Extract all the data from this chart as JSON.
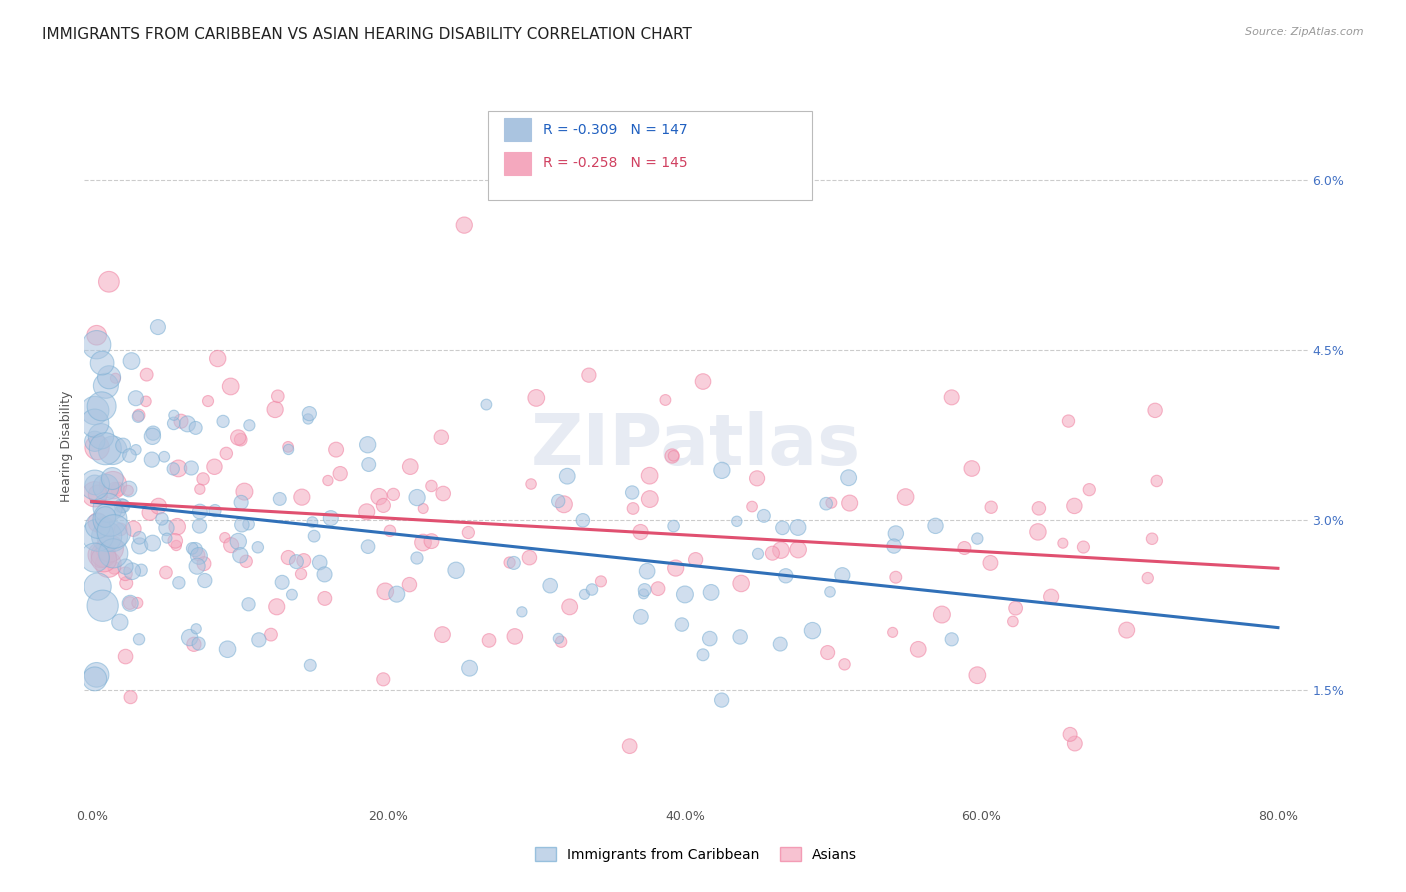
{
  "title": "IMMIGRANTS FROM CARIBBEAN VS ASIAN HEARING DISABILITY CORRELATION CHART",
  "source": "Source: ZipAtlas.com",
  "ylabel": "Hearing Disability",
  "xlim": [
    0.0,
    0.8
  ],
  "ylim": [
    0.005,
    0.068
  ],
  "xtick_vals": [
    0.0,
    0.2,
    0.4,
    0.6,
    0.8
  ],
  "xtick_labels": [
    "0.0%",
    "20.0%",
    "40.0%",
    "60.0%",
    "80.0%"
  ],
  "ytick_vals": [
    0.015,
    0.03,
    0.045,
    0.06
  ],
  "ytick_labels": [
    "1.5%",
    "3.0%",
    "4.5%",
    "6.0%"
  ],
  "caribbean_color": "#aac4e0",
  "asian_color": "#f4a8be",
  "caribbean_edge": "#7aafd4",
  "asian_edge": "#f080a0",
  "trend_caribbean_color": "#3070b8",
  "trend_asian_color": "#e05070",
  "legend_line1": "R = -0.309   N = 147",
  "legend_line2": "R = -0.258   N = 145",
  "legend_color1": "#2060c0",
  "legend_color2": "#d04060",
  "legend_label_caribbean": "Immigrants from Caribbean",
  "legend_label_asian": "Asians",
  "watermark": "ZIPatlas",
  "background_color": "#ffffff",
  "grid_color": "#cccccc",
  "title_fontsize": 11,
  "axis_label_fontsize": 9,
  "tick_fontsize": 9
}
